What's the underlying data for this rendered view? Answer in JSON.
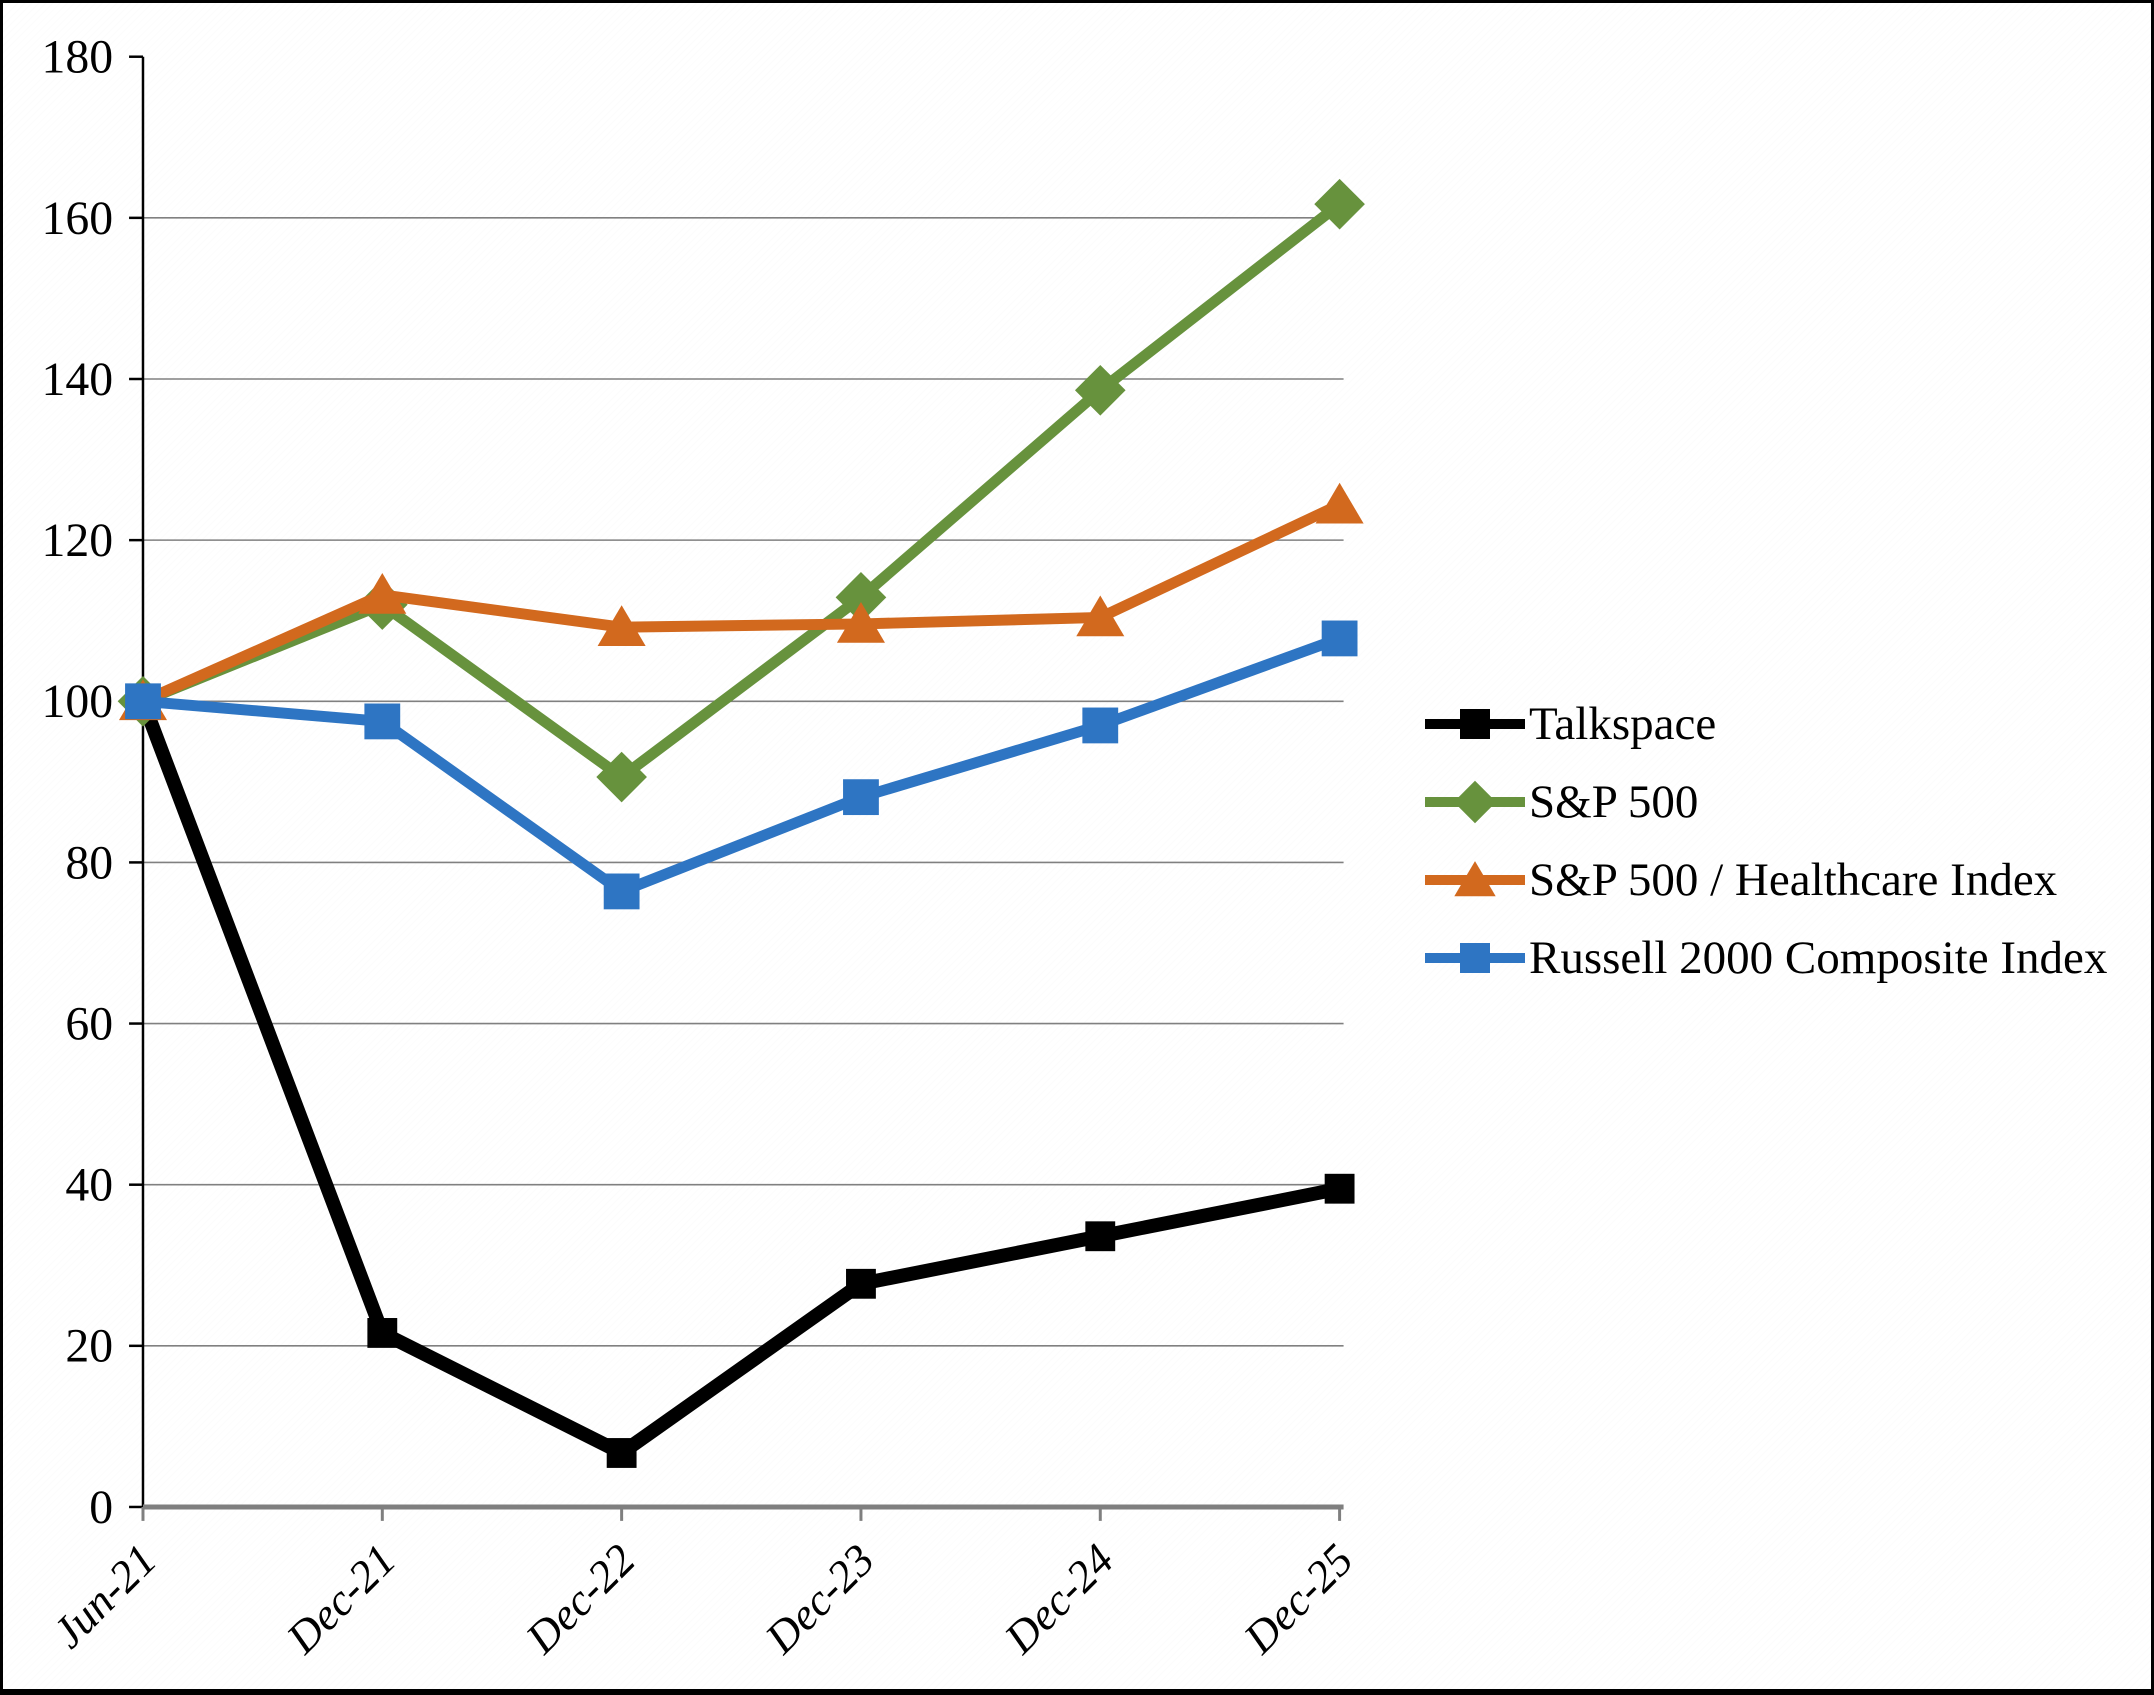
{
  "figure": {
    "border_color": "#000000",
    "background_color": "#ffffff",
    "grid_color": "#808080",
    "x_axis_color": "#7f7f7f",
    "y_axis_color": "#000000"
  },
  "chart_data": {
    "type": "line",
    "title": "",
    "xlabel": "",
    "ylabel": "",
    "categories": [
      "Jun-21",
      "Dec-21",
      "Dec-22",
      "Dec-23",
      "Dec-24",
      "Dec-25"
    ],
    "series": [
      {
        "name": "Talkspace",
        "color": "#000000",
        "marker": "square",
        "values": [
          100,
          21.6,
          6.7,
          27.7,
          33.6,
          39.5
        ]
      },
      {
        "name": "S&P 500",
        "color": "#67923D",
        "marker": "diamond",
        "values": [
          100,
          112.0,
          90.6,
          112.9,
          138.6,
          161.7
        ]
      },
      {
        "name": "S&P 500 / Healthcare Index",
        "color": "#D2691E",
        "marker": "triangle",
        "values": [
          100,
          113.2,
          109.2,
          109.6,
          110.4,
          124.4
        ]
      },
      {
        "name": "Russell 2000 Composite Index",
        "color": "#2E75C3",
        "marker": "square",
        "values": [
          100,
          97.5,
          76.4,
          88.1,
          97.0,
          107.8
        ]
      }
    ],
    "ylim": [
      0,
      180
    ],
    "ytick_step": 20,
    "y_tick_labels": [
      "0",
      "20",
      "40",
      "60",
      "80",
      "100",
      "120",
      "140",
      "160",
      "180"
    ],
    "grid": "horizontal",
    "legend_position": "right"
  }
}
